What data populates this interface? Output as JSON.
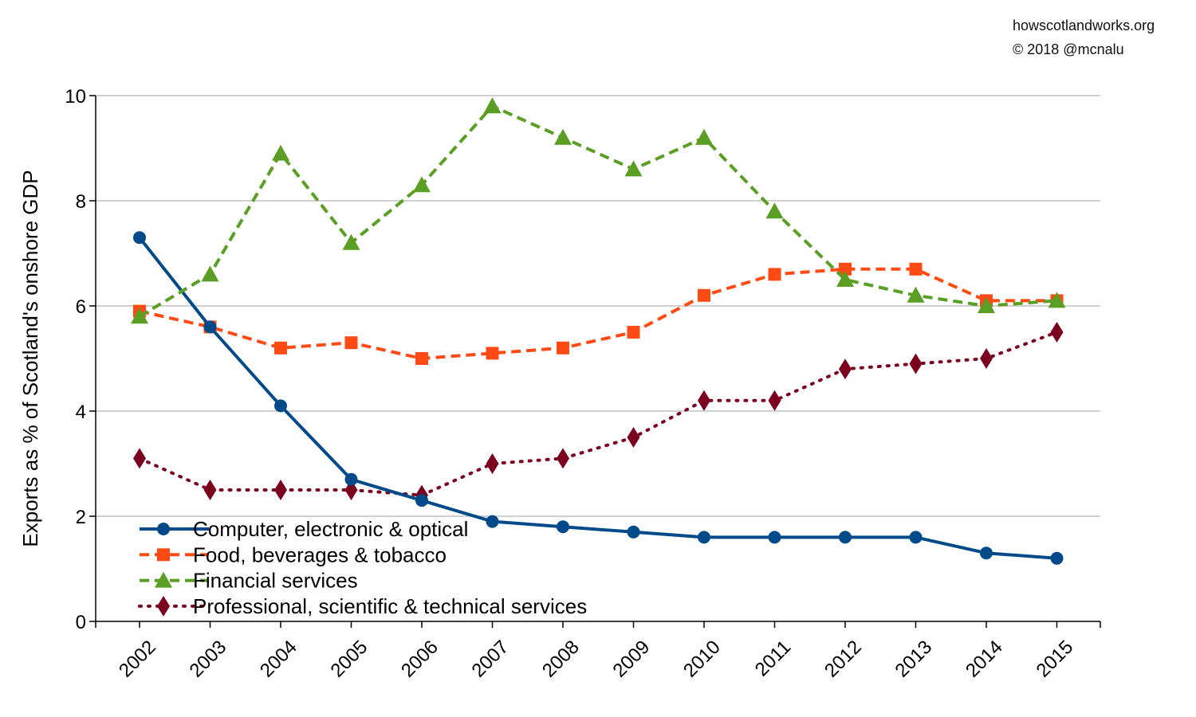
{
  "credits": {
    "site": "howscotlandworks.org",
    "copyright": "© 2018  @mcnalu"
  },
  "colors": {
    "computer": "#004a8a",
    "food": "#ff4a13",
    "financial": "#5a9e23",
    "professional": "#7b0020",
    "grid": "#b3b3b3",
    "axis": "#000000"
  },
  "chart_data": {
    "type": "line",
    "title": "",
    "xlabel": "",
    "ylabel": "Exports as % of Scotland's onshore GDP",
    "ylim": [
      0,
      10
    ],
    "yticks": [
      0,
      2,
      4,
      6,
      8,
      10
    ],
    "grid": "horizontal",
    "legend_position": "bottom-left",
    "categories": [
      "2002",
      "2003",
      "2004",
      "2005",
      "2006",
      "2007",
      "2008",
      "2009",
      "2010",
      "2011",
      "2012",
      "2013",
      "2014",
      "2015"
    ],
    "series": [
      {
        "name": "Computer, electronic & optical",
        "marker": "circle",
        "line_style": "solid",
        "color": "#004a8a",
        "values": [
          7.3,
          5.6,
          4.1,
          2.7,
          2.3,
          1.9,
          1.8,
          1.7,
          1.6,
          1.6,
          1.6,
          1.6,
          1.3,
          1.2
        ]
      },
      {
        "name": "Food, beverages & tobacco",
        "marker": "square",
        "line_style": "dashed",
        "color": "#ff4a13",
        "values": [
          5.9,
          5.6,
          5.2,
          5.3,
          5.0,
          5.1,
          5.2,
          5.5,
          6.2,
          6.6,
          6.7,
          6.7,
          6.1,
          6.1
        ]
      },
      {
        "name": "Financial services",
        "marker": "triangle",
        "line_style": "dashed",
        "color": "#5a9e23",
        "values": [
          5.8,
          6.6,
          8.9,
          7.2,
          8.3,
          9.8,
          9.2,
          8.6,
          9.2,
          7.8,
          6.5,
          6.2,
          6.0,
          6.1
        ]
      },
      {
        "name": "Professional, scientific & technical services",
        "marker": "diamond",
        "line_style": "dotted",
        "color": "#7b0020",
        "values": [
          3.1,
          2.5,
          2.5,
          2.5,
          2.4,
          3.0,
          3.1,
          3.5,
          4.2,
          4.2,
          4.8,
          4.9,
          5.0,
          5.5
        ]
      }
    ]
  }
}
